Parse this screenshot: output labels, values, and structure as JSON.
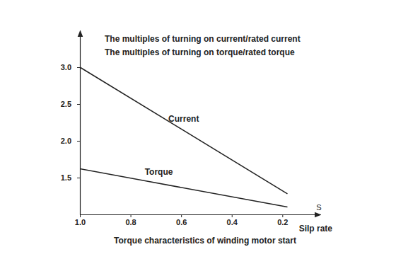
{
  "chart_data": {
    "type": "line",
    "title": "Torque characteristics of winding motor start",
    "y_labels": [
      "The multiples of turning on current/rated current",
      "The multiples of turning on torque/rated torque"
    ],
    "x_label": "Silp rate",
    "x_axis_end_label": "S",
    "x": [
      1.0,
      0.18
    ],
    "series": [
      {
        "name": "Current",
        "color": "#222222",
        "values": [
          3.0,
          1.28
        ]
      },
      {
        "name": "Torque",
        "color": "#222222",
        "values": [
          1.62,
          1.1
        ]
      }
    ],
    "xlim": [
      1.0,
      0.05
    ],
    "xticks": [
      {
        "value": 1,
        "label": "1.0"
      },
      0.8,
      0.6,
      0.4,
      0.2
    ],
    "ylim": [
      1.0,
      3.5
    ],
    "yticks": [
      1.5,
      {
        "value": 2,
        "label": "2.0"
      },
      2.5,
      {
        "value": 3,
        "label": "3.0"
      }
    ],
    "grid": false
  }
}
